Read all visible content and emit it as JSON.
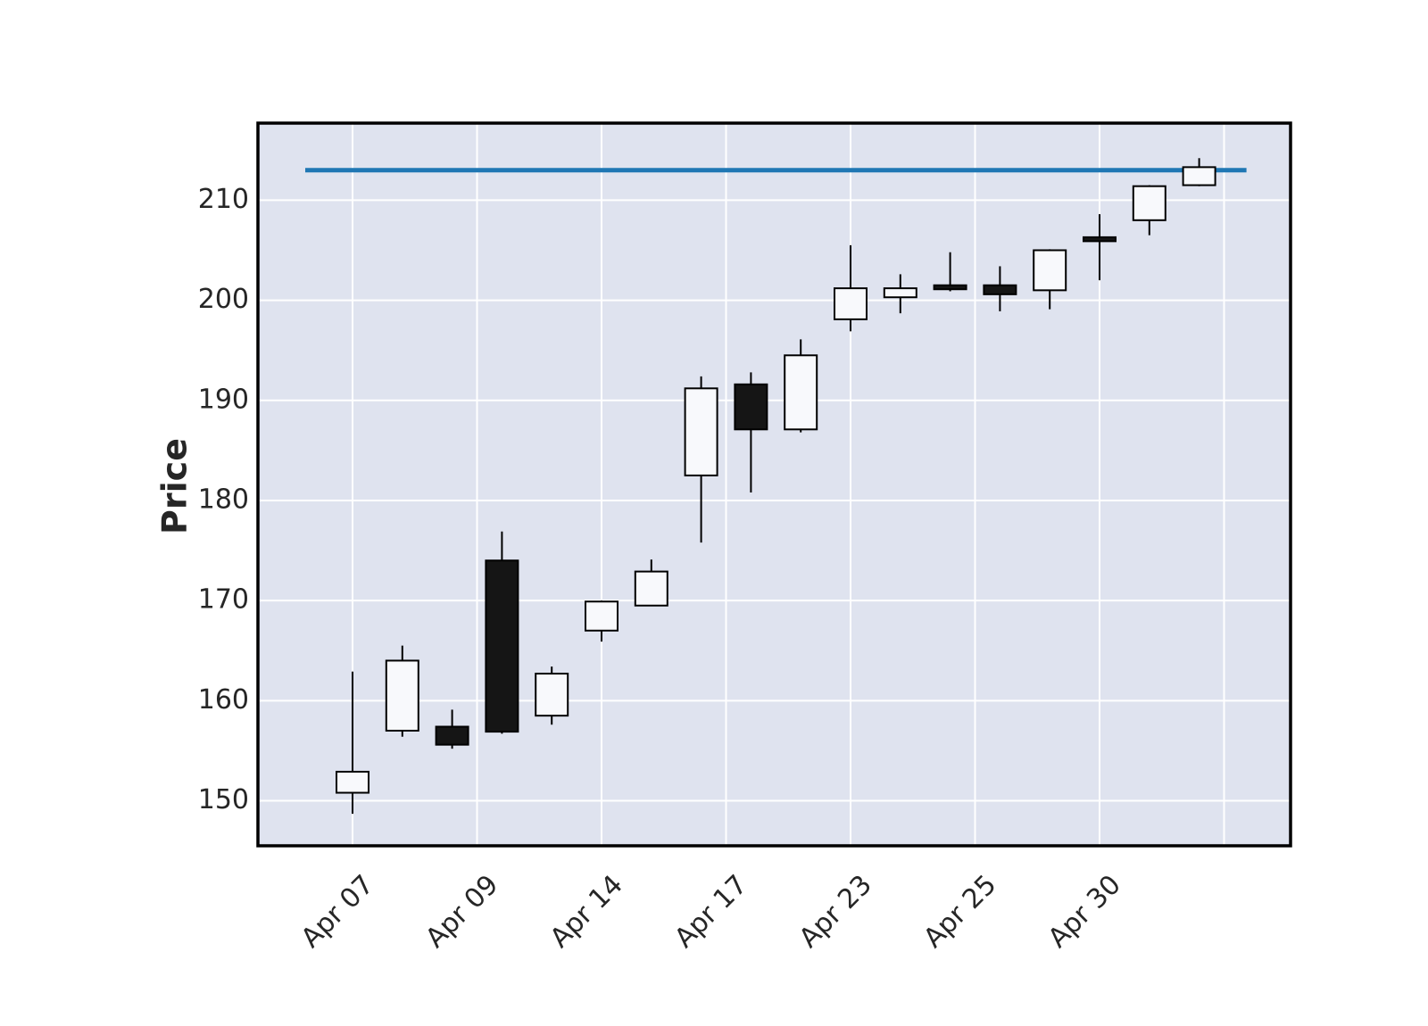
{
  "chart_data": {
    "type": "candlestick",
    "ylabel": "Price",
    "ylim": [
      145.5,
      217.7
    ],
    "yticks": [
      150,
      160,
      170,
      180,
      190,
      200,
      210
    ],
    "x_tick_labels": [
      {
        "index": 0,
        "label": "Apr 07"
      },
      {
        "index": 2.5,
        "label": "Apr 09"
      },
      {
        "index": 5,
        "label": "Apr 14"
      },
      {
        "index": 7.5,
        "label": "Apr 17"
      },
      {
        "index": 10,
        "label": "Apr 23"
      },
      {
        "index": 12.5,
        "label": "Apr 25"
      },
      {
        "index": 15,
        "label": "Apr 30"
      },
      {
        "index": 17.5,
        "label": ""
      }
    ],
    "candles": [
      {
        "open": 150.8,
        "high": 162.9,
        "low": 148.7,
        "close": 152.9
      },
      {
        "open": 157.0,
        "high": 165.5,
        "low": 156.4,
        "close": 164.0
      },
      {
        "open": 157.4,
        "high": 159.1,
        "low": 155.2,
        "close": 155.6
      },
      {
        "open": 174.0,
        "high": 176.9,
        "low": 156.7,
        "close": 156.9
      },
      {
        "open": 158.5,
        "high": 163.4,
        "low": 157.6,
        "close": 162.7
      },
      {
        "open": 167.0,
        "high": 170.0,
        "low": 165.9,
        "close": 169.9
      },
      {
        "open": 169.5,
        "high": 174.1,
        "low": 169.5,
        "close": 172.9
      },
      {
        "open": 182.5,
        "high": 192.4,
        "low": 175.8,
        "close": 191.2
      },
      {
        "open": 191.6,
        "high": 192.8,
        "low": 180.8,
        "close": 187.1
      },
      {
        "open": 187.1,
        "high": 196.1,
        "low": 186.8,
        "close": 194.5
      },
      {
        "open": 198.1,
        "high": 205.5,
        "low": 196.9,
        "close": 201.2
      },
      {
        "open": 200.3,
        "high": 202.6,
        "low": 198.7,
        "close": 201.2
      },
      {
        "open": 201.5,
        "high": 204.8,
        "low": 200.9,
        "close": 201.1
      },
      {
        "open": 201.5,
        "high": 203.4,
        "low": 198.9,
        "close": 200.6
      },
      {
        "open": 201.0,
        "high": 205.1,
        "low": 199.1,
        "close": 205.0
      },
      {
        "open": 206.3,
        "high": 208.6,
        "low": 202.0,
        "close": 205.9
      },
      {
        "open": 208.0,
        "high": 211.5,
        "low": 206.5,
        "close": 211.4
      },
      {
        "open": 211.5,
        "high": 214.2,
        "low": 211.4,
        "close": 213.3
      }
    ],
    "hline": {
      "value": 213.0,
      "color": "#1f77b4"
    },
    "colors": {
      "background": "#dfe3ef",
      "grid": "#ffffff",
      "up_fill": "#f8f9fc",
      "down_fill": "#151515",
      "edge": "#000000"
    },
    "grid": true
  }
}
